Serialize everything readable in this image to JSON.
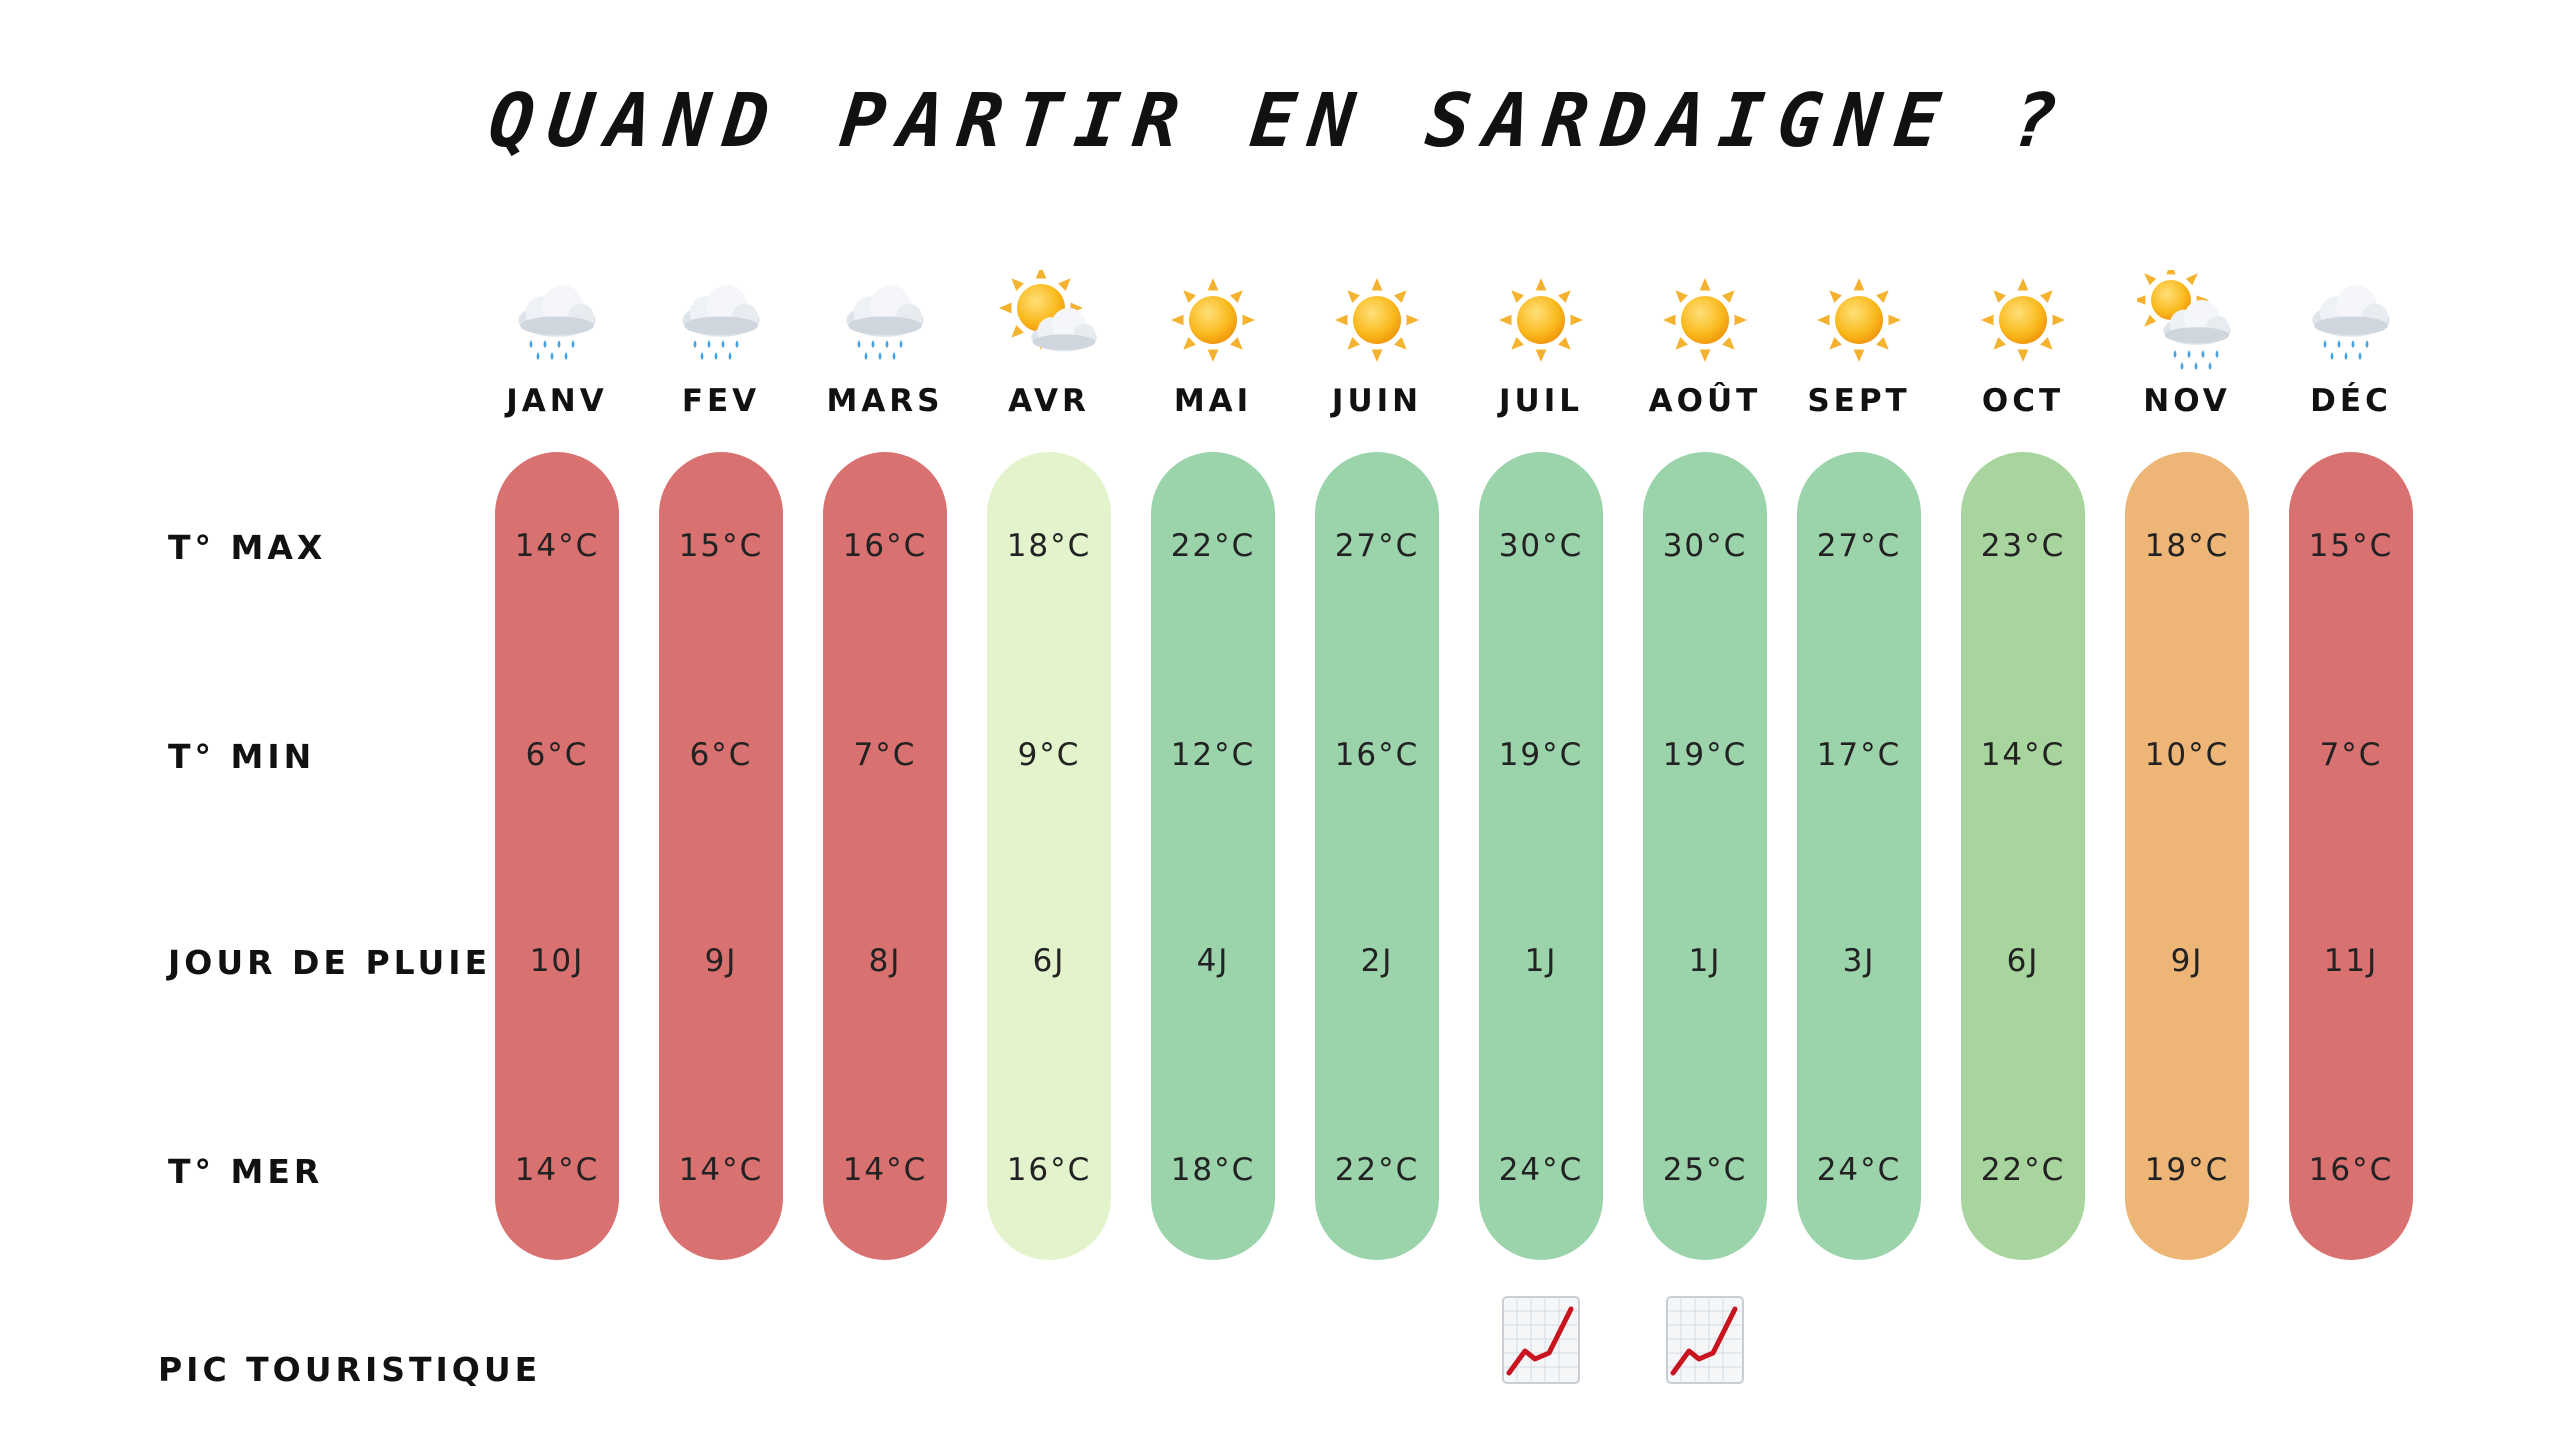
{
  "title": "QUAND PARTIR EN SARDAIGNE ?",
  "row_labels": {
    "tmax": "T° MAX",
    "tmin": "T° MIN",
    "rain": "JOUR DE PLUIE",
    "sea": "T° MER",
    "peak": "PIC TOURISTIQUE"
  },
  "colors": {
    "red": "#d97171",
    "light_green": "#e3f3cc",
    "green": "#9bd3ab",
    "mid_green": "#a8d49e",
    "orange": "#edb676"
  },
  "months": [
    {
      "name": "JANV",
      "icon": "rain-cloud-icon",
      "tmax": "14°C",
      "tmin": "6°C",
      "rain": "10J",
      "sea": "14°C",
      "color": "#d97171",
      "peak": false
    },
    {
      "name": "FEV",
      "icon": "rain-cloud-icon",
      "tmax": "15°C",
      "tmin": "6°C",
      "rain": "9J",
      "sea": "14°C",
      "color": "#d97171",
      "peak": false
    },
    {
      "name": "MARS",
      "icon": "rain-cloud-icon",
      "tmax": "16°C",
      "tmin": "7°C",
      "rain": "8J",
      "sea": "14°C",
      "color": "#d97171",
      "peak": false
    },
    {
      "name": "AVR",
      "icon": "sun-behind-cloud-icon",
      "tmax": "18°C",
      "tmin": "9°C",
      "rain": "6J",
      "sea": "16°C",
      "color": "#e3f3cc",
      "peak": false
    },
    {
      "name": "MAI",
      "icon": "sun-icon",
      "tmax": "22°C",
      "tmin": "12°C",
      "rain": "4J",
      "sea": "18°C",
      "color": "#9bd3ab",
      "peak": false
    },
    {
      "name": "JUIN",
      "icon": "sun-icon",
      "tmax": "27°C",
      "tmin": "16°C",
      "rain": "2J",
      "sea": "22°C",
      "color": "#9bd3ab",
      "peak": false
    },
    {
      "name": "JUIL",
      "icon": "sun-icon",
      "tmax": "30°C",
      "tmin": "19°C",
      "rain": "1J",
      "sea": "24°C",
      "color": "#9bd3ab",
      "peak": true
    },
    {
      "name": "AOÛT",
      "icon": "sun-icon",
      "tmax": "30°C",
      "tmin": "19°C",
      "rain": "1J",
      "sea": "25°C",
      "color": "#9bd3ab",
      "peak": true
    },
    {
      "name": "SEPT",
      "icon": "sun-icon",
      "tmax": "27°C",
      "tmin": "17°C",
      "rain": "3J",
      "sea": "24°C",
      "color": "#9bd3ab",
      "peak": false
    },
    {
      "name": "OCT",
      "icon": "sun-icon",
      "tmax": "23°C",
      "tmin": "14°C",
      "rain": "6J",
      "sea": "22°C",
      "color": "#a8d49e",
      "peak": false
    },
    {
      "name": "NOV",
      "icon": "sun-behind-rain-cloud-icon",
      "tmax": "18°C",
      "tmin": "10°C",
      "rain": "9J",
      "sea": "19°C",
      "color": "#edb676",
      "peak": false
    },
    {
      "name": "DÉC",
      "icon": "rain-cloud-icon",
      "tmax": "15°C",
      "tmin": "7°C",
      "rain": "11J",
      "sea": "16°C",
      "color": "#d97171",
      "peak": false
    }
  ]
}
